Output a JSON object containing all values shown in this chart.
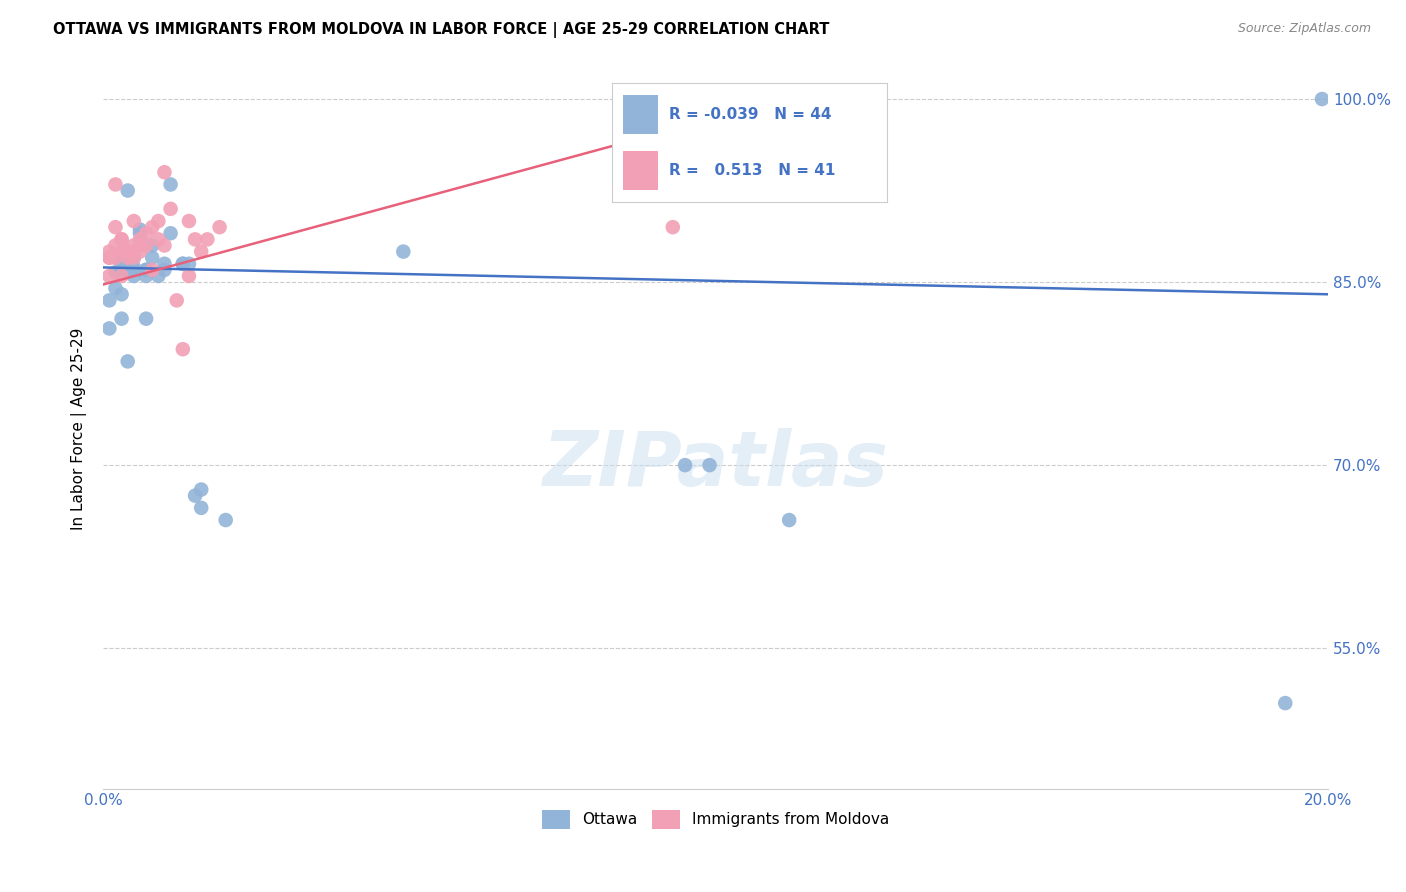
{
  "title": "OTTAWA VS IMMIGRANTS FROM MOLDOVA IN LABOR FORCE | AGE 25-29 CORRELATION CHART",
  "source": "Source: ZipAtlas.com",
  "ylabel": "In Labor Force | Age 25-29",
  "legend_labels": [
    "Ottawa",
    "Immigrants from Moldova"
  ],
  "r_ottawa": -0.039,
  "n_ottawa": 44,
  "r_moldova": 0.513,
  "n_moldova": 41,
  "ottawa_color": "#92b4d8",
  "moldova_color": "#f2a0b5",
  "ottawa_line_color": "#4472c4",
  "moldova_line_color": "#e8607a",
  "xlim": [
    0.0,
    0.2
  ],
  "ylim": [
    0.435,
    1.025
  ],
  "x_ticks": [
    0.0,
    0.02,
    0.04,
    0.06,
    0.08,
    0.1,
    0.12,
    0.14,
    0.16,
    0.18,
    0.2
  ],
  "y_ticks": [
    0.55,
    0.7,
    0.85,
    1.0
  ],
  "y_tick_labels": [
    "55.0%",
    "70.0%",
    "85.0%",
    "100.0%"
  ],
  "ottawa_line_x": [
    0.0,
    0.2
  ],
  "ottawa_line_y": [
    0.862,
    0.84
  ],
  "moldova_line_x": [
    0.0,
    0.093
  ],
  "moldova_line_y": [
    0.848,
    0.975
  ],
  "ottawa_x": [
    0.001,
    0.001,
    0.002,
    0.002,
    0.002,
    0.003,
    0.003,
    0.003,
    0.003,
    0.004,
    0.004,
    0.004,
    0.004,
    0.005,
    0.005,
    0.005,
    0.006,
    0.006,
    0.007,
    0.007,
    0.007,
    0.007,
    0.008,
    0.008,
    0.009,
    0.01,
    0.01,
    0.011,
    0.011,
    0.013,
    0.013,
    0.014,
    0.015,
    0.016,
    0.016,
    0.02,
    0.049,
    0.095,
    0.099,
    0.112,
    0.193,
    0.199,
    0.003,
    0.005
  ],
  "ottawa_y": [
    0.835,
    0.812,
    0.858,
    0.87,
    0.845,
    0.87,
    0.86,
    0.84,
    0.82,
    0.925,
    0.865,
    0.86,
    0.785,
    0.87,
    0.862,
    0.86,
    0.89,
    0.893,
    0.86,
    0.855,
    0.82,
    0.86,
    0.87,
    0.88,
    0.855,
    0.86,
    0.865,
    0.89,
    0.93,
    0.865,
    0.865,
    0.865,
    0.675,
    0.665,
    0.68,
    0.655,
    0.875,
    0.7,
    0.7,
    0.655,
    0.505,
    1.0,
    0.86,
    0.855
  ],
  "moldova_x": [
    0.001,
    0.001,
    0.001,
    0.001,
    0.002,
    0.002,
    0.002,
    0.002,
    0.003,
    0.003,
    0.003,
    0.003,
    0.004,
    0.004,
    0.004,
    0.005,
    0.005,
    0.005,
    0.005,
    0.006,
    0.006,
    0.006,
    0.007,
    0.007,
    0.008,
    0.008,
    0.009,
    0.009,
    0.01,
    0.01,
    0.011,
    0.012,
    0.013,
    0.014,
    0.014,
    0.015,
    0.016,
    0.017,
    0.019,
    0.091,
    0.093
  ],
  "moldova_y": [
    0.87,
    0.875,
    0.855,
    0.87,
    0.93,
    0.88,
    0.895,
    0.87,
    0.885,
    0.875,
    0.855,
    0.885,
    0.875,
    0.87,
    0.875,
    0.875,
    0.87,
    0.9,
    0.88,
    0.88,
    0.875,
    0.885,
    0.88,
    0.89,
    0.895,
    0.86,
    0.9,
    0.885,
    0.94,
    0.88,
    0.91,
    0.835,
    0.795,
    0.9,
    0.855,
    0.885,
    0.875,
    0.885,
    0.895,
    1.0,
    0.895
  ]
}
